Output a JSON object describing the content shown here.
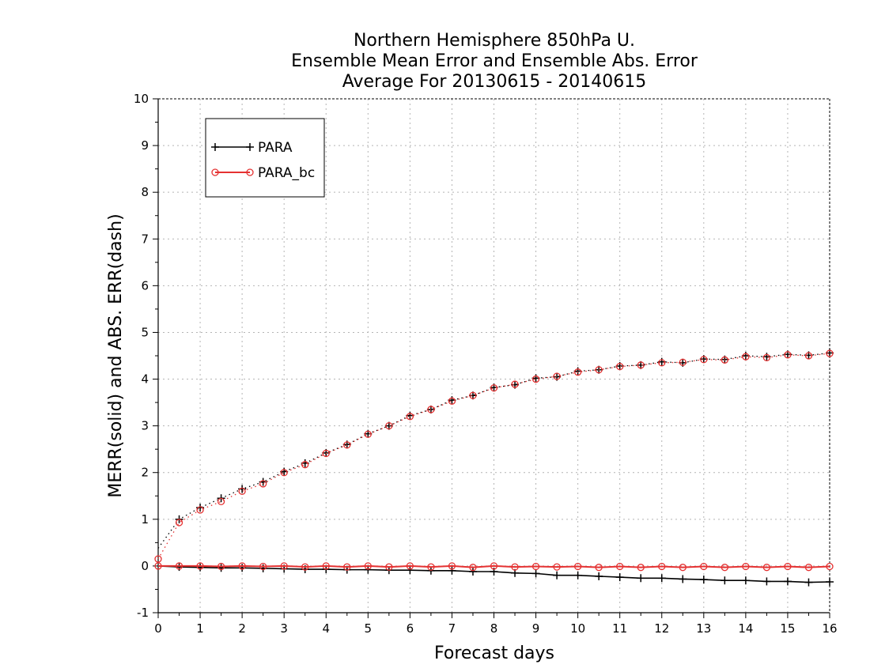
{
  "chart_data": {
    "type": "line",
    "title_lines": [
      "Northern Hemisphere 850hPa U.",
      "Ensemble Mean Error and Ensemble Abs. Error",
      "Average For 20130615 - 20140615"
    ],
    "xlabel": "Forecast days",
    "ylabel": "MERR(solid) and ABS. ERR(dash)",
    "xlim": [
      0,
      16
    ],
    "ylim": [
      -1,
      10
    ],
    "x_ticks": [
      "0",
      "1",
      "2",
      "3",
      "4",
      "5",
      "6",
      "7",
      "8",
      "9",
      "10",
      "11",
      "12",
      "13",
      "14",
      "15",
      "16"
    ],
    "y_ticks": [
      "-1",
      "0",
      "1",
      "2",
      "3",
      "4",
      "5",
      "6",
      "7",
      "8",
      "9",
      "10"
    ],
    "grid": true,
    "legend_position": "top-left",
    "x": [
      0,
      0.5,
      1,
      1.5,
      2,
      2.5,
      3,
      3.5,
      4,
      4.5,
      5,
      5.5,
      6,
      6.5,
      7,
      7.5,
      8,
      8.5,
      9,
      9.5,
      10,
      10.5,
      11,
      11.5,
      12,
      12.5,
      13,
      13.5,
      14,
      14.5,
      15,
      15.5,
      16
    ],
    "series": [
      {
        "name": "PARA",
        "color": "#000000",
        "marker": "plus",
        "merr": [
          0,
          -0.02,
          -0.03,
          -0.04,
          -0.04,
          -0.05,
          -0.06,
          -0.07,
          -0.07,
          -0.08,
          -0.08,
          -0.09,
          -0.09,
          -0.1,
          -0.1,
          -0.12,
          -0.12,
          -0.15,
          -0.16,
          -0.2,
          -0.2,
          -0.22,
          -0.24,
          -0.26,
          -0.26,
          -0.28,
          -0.29,
          -0.31,
          -0.31,
          -0.33,
          -0.33,
          -0.35,
          -0.34
        ],
        "abs_err": [
          0.38,
          1.0,
          1.25,
          1.45,
          1.65,
          1.8,
          2.02,
          2.2,
          2.42,
          2.6,
          2.83,
          3.0,
          3.22,
          3.35,
          3.55,
          3.65,
          3.82,
          3.88,
          4.02,
          4.05,
          4.17,
          4.2,
          4.28,
          4.3,
          4.37,
          4.35,
          4.43,
          4.42,
          4.5,
          4.48,
          4.53,
          4.51,
          4.56
        ]
      },
      {
        "name": "PARA_bc",
        "color": "#e53232",
        "marker": "circle",
        "merr": [
          0.0,
          0.0,
          0.0,
          -0.01,
          0.0,
          -0.01,
          0.0,
          -0.02,
          0.0,
          -0.02,
          0.0,
          -0.02,
          0.0,
          -0.02,
          0.0,
          -0.03,
          0.0,
          -0.02,
          -0.01,
          -0.02,
          -0.01,
          -0.03,
          -0.01,
          -0.03,
          -0.01,
          -0.03,
          -0.01,
          -0.03,
          -0.01,
          -0.03,
          -0.01,
          -0.03,
          -0.01
        ],
        "abs_err": [
          0.15,
          0.93,
          1.2,
          1.38,
          1.6,
          1.76,
          2.0,
          2.17,
          2.41,
          2.59,
          2.82,
          3.0,
          3.2,
          3.35,
          3.53,
          3.65,
          3.81,
          3.89,
          4.0,
          4.06,
          4.15,
          4.2,
          4.27,
          4.3,
          4.35,
          4.36,
          4.42,
          4.41,
          4.48,
          4.46,
          4.52,
          4.5,
          4.55
        ]
      }
    ]
  }
}
